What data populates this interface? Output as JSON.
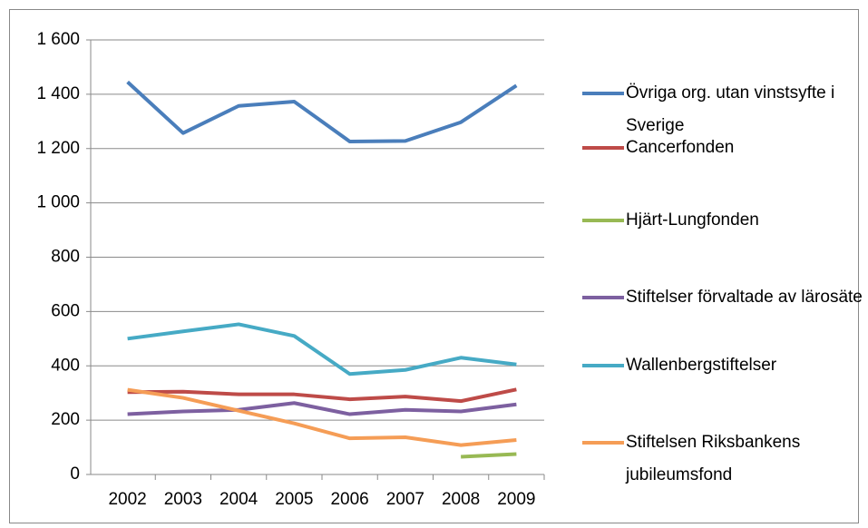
{
  "chart_data": {
    "type": "line",
    "categories": [
      "2002",
      "2003",
      "2004",
      "2005",
      "2006",
      "2007",
      "2008",
      "2009"
    ],
    "series": [
      {
        "name": "Övriga org. utan vinstsyfte i Sverige",
        "color": "#4a7ebb",
        "values": [
          1445,
          1257,
          1357,
          1373,
          1226,
          1228,
          1297,
          1432
        ]
      },
      {
        "name": "Cancerfonden",
        "color": "#be4b48",
        "values": [
          303,
          305,
          295,
          295,
          277,
          287,
          270,
          313
        ]
      },
      {
        "name": "Hjärt-Lungfonden",
        "color": "#98b954",
        "values": [
          null,
          null,
          null,
          null,
          null,
          null,
          65,
          75
        ]
      },
      {
        "name": "Stiftelser förvaltade av lärosäte",
        "color": "#7d60a0",
        "values": [
          222,
          232,
          238,
          263,
          222,
          238,
          232,
          258
        ]
      },
      {
        "name": "Wallenbergstiftelser",
        "color": "#46aac5",
        "values": [
          500,
          527,
          553,
          510,
          370,
          385,
          430,
          405
        ]
      },
      {
        "name": "Stiftelsen Riksbankens jubileumsfond",
        "color": "#f59d56",
        "values": [
          312,
          282,
          235,
          188,
          133,
          137,
          108,
          127
        ]
      }
    ],
    "ylim": [
      0,
      1600
    ],
    "yticks": [
      0,
      200,
      400,
      600,
      800,
      {
        "value": 1000,
        "label": "1 000"
      },
      {
        "value": 1200,
        "label": "1 200"
      },
      {
        "value": 1400,
        "label": "1 400"
      },
      {
        "value": 1600,
        "label": "1 600"
      }
    ],
    "grid": true,
    "legend": "right"
  }
}
